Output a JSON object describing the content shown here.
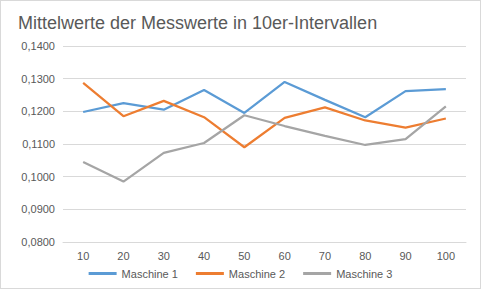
{
  "chart_data": {
    "type": "line",
    "title": "Mittelwerte der Messwerte in 10er-Intervallen",
    "categories": [
      10,
      20,
      30,
      40,
      50,
      60,
      70,
      80,
      90,
      100
    ],
    "series": [
      {
        "name": "Maschine 1",
        "color": "#5b9bd5",
        "values": [
          0.1198,
          0.1225,
          0.1205,
          0.1265,
          0.1195,
          0.129,
          0.1235,
          0.1182,
          0.1262,
          0.1268
        ]
      },
      {
        "name": "Maschine 2",
        "color": "#ed7d31",
        "values": [
          0.1287,
          0.1185,
          0.1232,
          0.1182,
          0.109,
          0.118,
          0.1212,
          0.1172,
          0.115,
          0.1178
        ]
      },
      {
        "name": "Maschine 3",
        "color": "#a5a5a5",
        "values": [
          0.1045,
          0.0985,
          0.1073,
          0.1103,
          0.1188,
          0.1155,
          0.1125,
          0.1097,
          0.1115,
          0.1215
        ]
      }
    ],
    "ylim": [
      0.08,
      0.14
    ],
    "yticks": [
      {
        "value": 0.08,
        "label": "0,0800"
      },
      {
        "value": 0.09,
        "label": "0,0900"
      },
      {
        "value": 0.1,
        "label": "0,1000"
      },
      {
        "value": 0.11,
        "label": "0,1100"
      },
      {
        "value": 0.12,
        "label": "0,1200"
      },
      {
        "value": 0.13,
        "label": "0,1300"
      },
      {
        "value": 0.14,
        "label": "0,1400"
      }
    ],
    "grid": true,
    "legend": "bottom"
  }
}
